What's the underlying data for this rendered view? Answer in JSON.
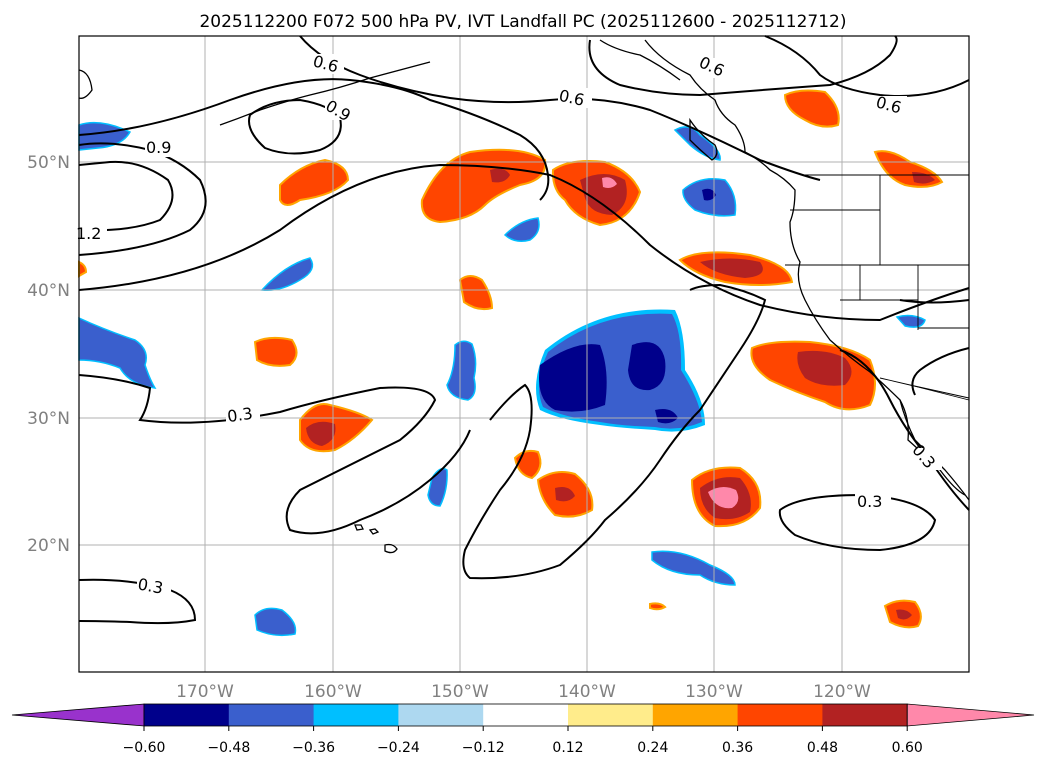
{
  "title": "2025112200 F072 500 hPa PV, IVT Landfall PC (2025112600 - 2025112712)",
  "lat_labels": [
    "50°N",
    "40°N",
    "30°N",
    "20°N"
  ],
  "lon_labels": [
    "170°W",
    "160°W",
    "150°W",
    "140°W",
    "130°W",
    "120°W"
  ],
  "colorbar": {
    "ticks": [
      "−0.60",
      "−0.48",
      "−0.36",
      "−0.24",
      "−0.12",
      "0.12",
      "0.24",
      "0.36",
      "0.48",
      "0.60"
    ],
    "colors": [
      "#9932cc",
      "#00008b",
      "#3a5fcd",
      "#00bfff",
      "#add8f0",
      "#ffffff",
      "#ffec8b",
      "#ffa500",
      "#ff4500",
      "#b22222",
      "#ff88aa"
    ]
  },
  "contour_labels": [
    "0.6",
    "0.9",
    "0.6",
    "0.6",
    "0.6",
    "0.9",
    "1.2",
    "0.3",
    "0.3",
    "0.3",
    "0.3"
  ],
  "colors": {
    "neg_strong": "#00008b",
    "neg_mid": "#3a5fcd",
    "neg_light": "#00bfff",
    "pos_light": "#ffec8b",
    "pos_mid": "#ffa500",
    "pos_strong": "#ff4500",
    "pos_dark": "#b22222",
    "pos_max": "#ff88aa"
  }
}
